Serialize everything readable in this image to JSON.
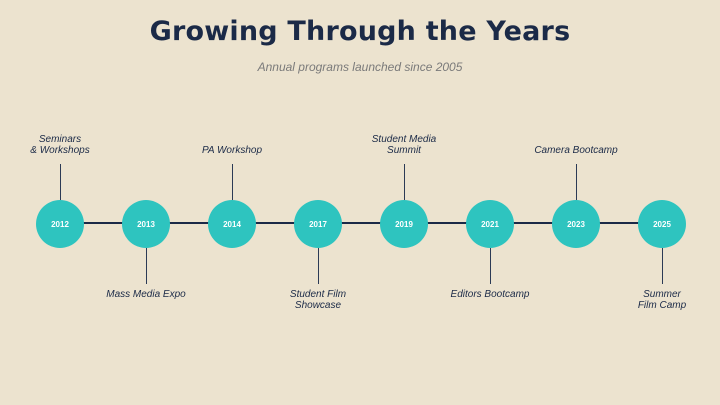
{
  "title": "Growing Through the Years",
  "subtitle": "Annual programs launched since 2005",
  "colors": {
    "background": "#ece3cf",
    "node": "#2ec4bf",
    "line": "#1b2a47",
    "title": "#1b2a47"
  },
  "milestones": [
    {
      "year": "2012",
      "label_lines": [
        "Seminars",
        "& Workshops"
      ],
      "position": "above"
    },
    {
      "year": "2013",
      "label_lines": [
        "Mass Media Expo"
      ],
      "position": "below"
    },
    {
      "year": "2014",
      "label_lines": [
        "PA Workshop"
      ],
      "position": "above"
    },
    {
      "year": "2017",
      "label_lines": [
        "Student Film",
        "Showcase"
      ],
      "position": "below"
    },
    {
      "year": "2019",
      "label_lines": [
        "Student Media",
        "Summit"
      ],
      "position": "above"
    },
    {
      "year": "2021",
      "label_lines": [
        "Editors Bootcamp"
      ],
      "position": "below"
    },
    {
      "year": "2023",
      "label_lines": [
        "Camera Bootcamp"
      ],
      "position": "above"
    },
    {
      "year": "2025",
      "label_lines": [
        "Summer",
        "Film Camp"
      ],
      "position": "below"
    }
  ]
}
